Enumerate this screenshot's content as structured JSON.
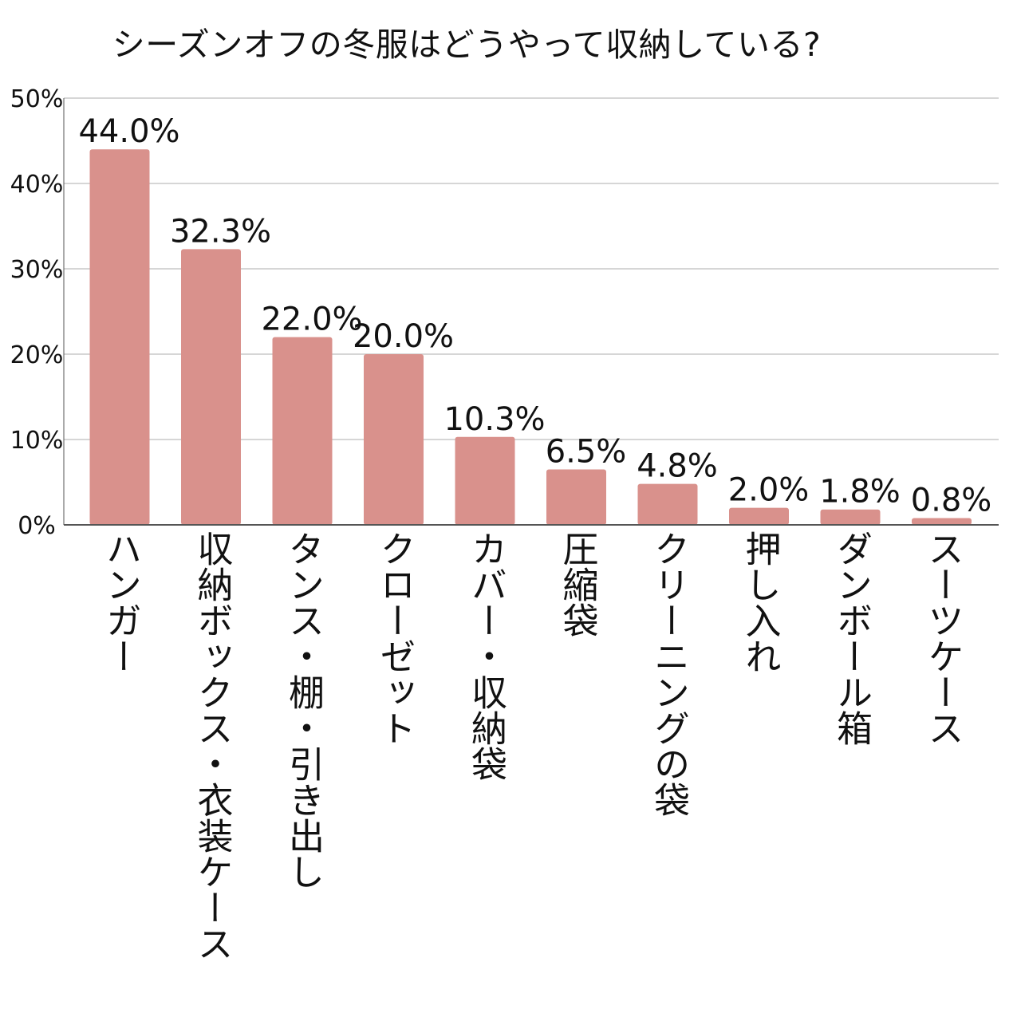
{
  "chart_data": {
    "type": "bar",
    "title": "シーズンオフの冬服はどうやって収納している?",
    "xlabel": "",
    "ylabel": "",
    "ylim": [
      0,
      50
    ],
    "yticks": [
      0,
      10,
      20,
      30,
      40,
      50
    ],
    "ytick_labels": [
      "0%",
      "10%",
      "20%",
      "30%",
      "40%",
      "50%"
    ],
    "grid": true,
    "legend": "none",
    "categories": [
      "ハンガー",
      "収納ボックス・衣装ケース",
      "タンス・棚・引き出し",
      "クローゼット",
      "カバー・収納袋",
      "圧縮袋",
      "クリーニングの袋",
      "押し入れ",
      "ダンボール箱",
      "スーツケース"
    ],
    "values": [
      44.0,
      32.3,
      22.0,
      20.0,
      10.3,
      6.5,
      4.8,
      2.0,
      1.8,
      0.8
    ],
    "value_labels": [
      "44.0%",
      "32.3%",
      "22.0%",
      "20.0%",
      "10.3%",
      "6.5%",
      "4.8%",
      "2.0%",
      "1.8%",
      "0.8%"
    ],
    "colors": {
      "bar": "#d9918c",
      "grid": "#d6d6d6",
      "axis": "#555555",
      "text": "#111111"
    }
  }
}
